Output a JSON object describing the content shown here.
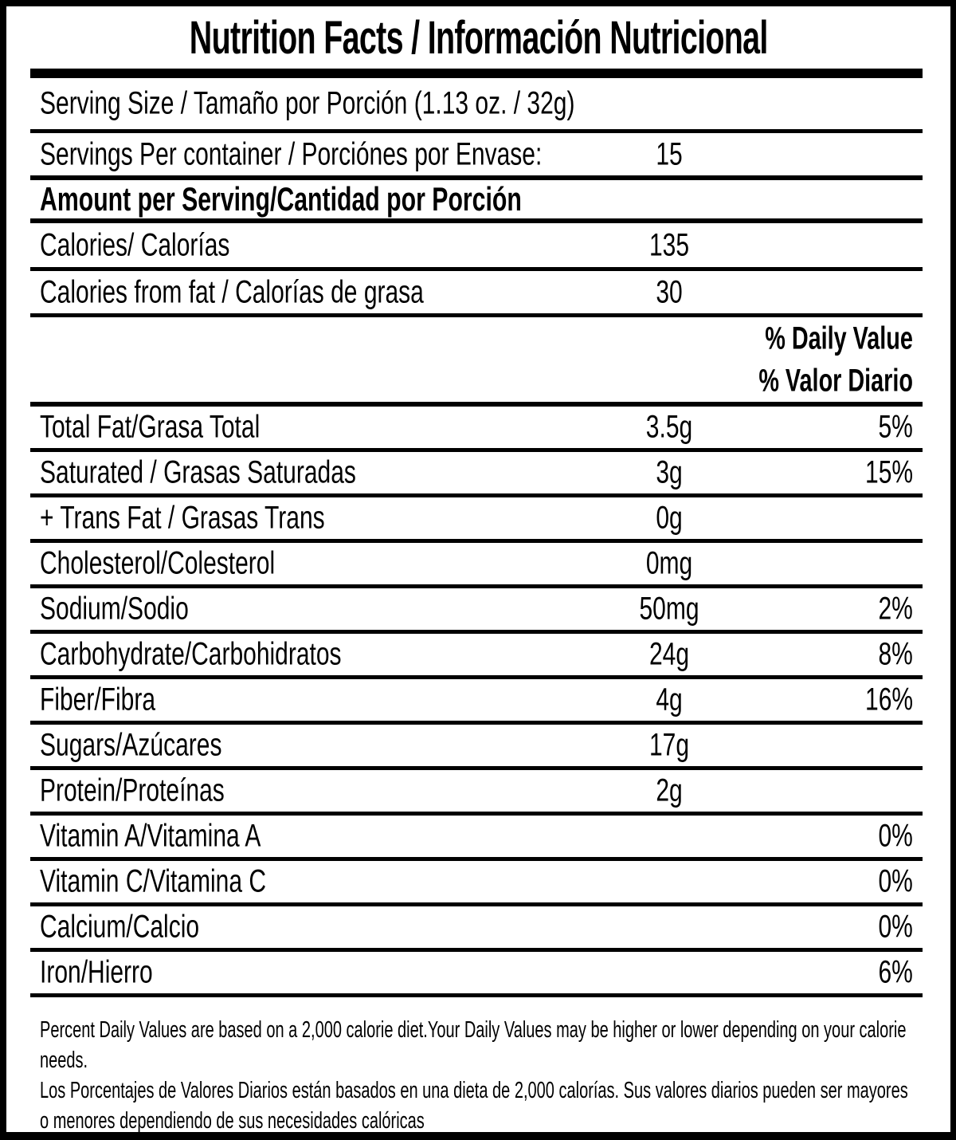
{
  "colors": {
    "ink": "#000000",
    "paper": "#ffffff"
  },
  "label": {
    "title": "Nutrition Facts / Información Nutricional",
    "serving_size": "Serving Size / Tamaño por Porción (1.13 oz. / 32g)",
    "servings_per_container": {
      "label": "Servings Per container / Porciónes por Envase:",
      "value": "15"
    },
    "amount_per_serving": "Amount per Serving/Cantidad por Porción",
    "calories": {
      "label": "Calories/ Calorías",
      "value": "135"
    },
    "calories_from_fat": {
      "label": "Calories from fat / Calorías de grasa",
      "value": "30"
    },
    "daily_value_header_en": "% Daily Value",
    "daily_value_header_es": "% Valor Diario",
    "nutrients": [
      {
        "label": "Total Fat/Grasa Total",
        "amount": "3.5g",
        "dv": "5%"
      },
      {
        "label": "Saturated / Grasas Saturadas",
        "amount": "3g",
        "dv": "15%"
      },
      {
        "label": "+ Trans Fat / Grasas Trans",
        "amount": "0g",
        "dv": ""
      },
      {
        "label": "Cholesterol/Colesterol",
        "amount": "0mg",
        "dv": ""
      },
      {
        "label": "Sodium/Sodio",
        "amount": "50mg",
        "dv": "2%"
      },
      {
        "label": "Carbohydrate/Carbohidratos",
        "amount": "24g",
        "dv": "8%"
      },
      {
        "label": "Fiber/Fibra",
        "amount": "4g",
        "dv": "16%"
      },
      {
        "label": "Sugars/Azúcares",
        "amount": "17g",
        "dv": ""
      },
      {
        "label": "Protein/Proteínas",
        "amount": "2g",
        "dv": ""
      },
      {
        "label": "Vitamin A/Vitamina A",
        "amount": "",
        "dv": "0%"
      },
      {
        "label": "Vitamin C/Vitamina C",
        "amount": "",
        "dv": "0%"
      },
      {
        "label": "Calcium/Calcio",
        "amount": "",
        "dv": "0%"
      },
      {
        "label": "Iron/Hierro",
        "amount": "",
        "dv": "6%"
      }
    ],
    "footnote_en": "Percent Daily Values are based on a 2,000 calorie diet.Your Daily Values may be higher or lower depending on your calorie needs.",
    "footnote_es": "Los Porcentajes de Valores Diarios están basados en una dieta de 2,000 calorías. Sus valores diarios pueden ser mayores o menores dependiendo de sus necesidades calóricas"
  }
}
